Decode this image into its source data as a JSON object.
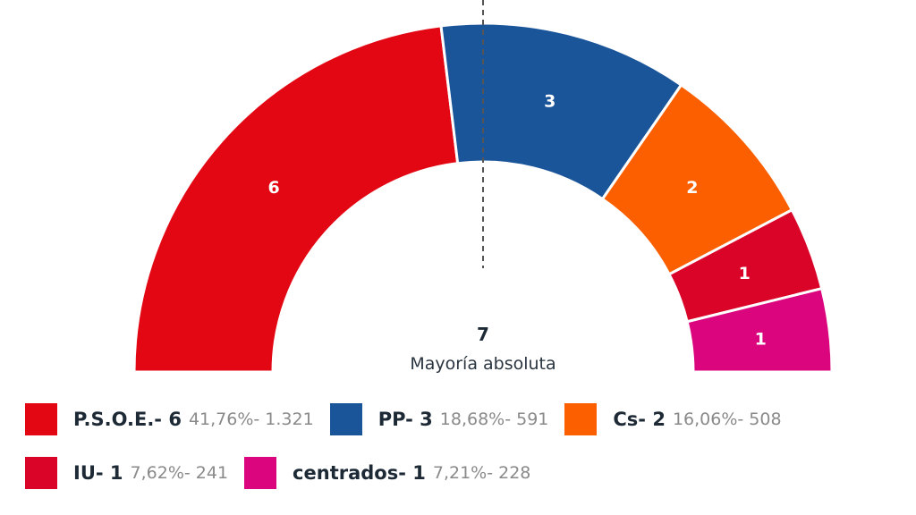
{
  "chart_data": {
    "type": "parliament-semicircle",
    "title": "",
    "total_seats": 13,
    "majority": {
      "value": "7",
      "label": "Mayoría absoluta"
    },
    "categories": [
      "P.S.O.E.",
      "PP",
      "Cs",
      "IU",
      "centrados"
    ],
    "values": [
      6,
      3,
      2,
      1,
      1
    ],
    "series": [
      {
        "name": "P.S.O.E.",
        "seats": 6,
        "percent": "41,76%",
        "votes": "1.321",
        "color": "#e30613"
      },
      {
        "name": "PP",
        "seats": 3,
        "percent": "18,68%",
        "votes": "591",
        "color": "#1a5499"
      },
      {
        "name": "Cs",
        "seats": 2,
        "percent": "16,06%",
        "votes": "508",
        "color": "#fb5f00"
      },
      {
        "name": "IU",
        "seats": 1,
        "percent": "7,62%",
        "votes": "241",
        "color": "#d90427"
      },
      {
        "name": "centrados",
        "seats": 1,
        "percent": "7,21%",
        "votes": "228",
        "color": "#db057e"
      }
    ],
    "legend_position": "bottom"
  },
  "legend": [
    {
      "label": "P.S.O.E.- 6",
      "stats": "41,76%- 1.321",
      "color": "#e30613"
    },
    {
      "label": "PP- 3",
      "stats": "18,68%- 591",
      "color": "#1a5499"
    },
    {
      "label": "Cs- 2",
      "stats": "16,06%- 508",
      "color": "#fb5f00"
    },
    {
      "label": "IU- 1",
      "stats": "7,62%- 241",
      "color": "#d90427"
    },
    {
      "label": "centrados- 1",
      "stats": "7,21%- 228",
      "color": "#db057e"
    }
  ],
  "center": {
    "number": "7",
    "text": "Mayoría absoluta"
  }
}
